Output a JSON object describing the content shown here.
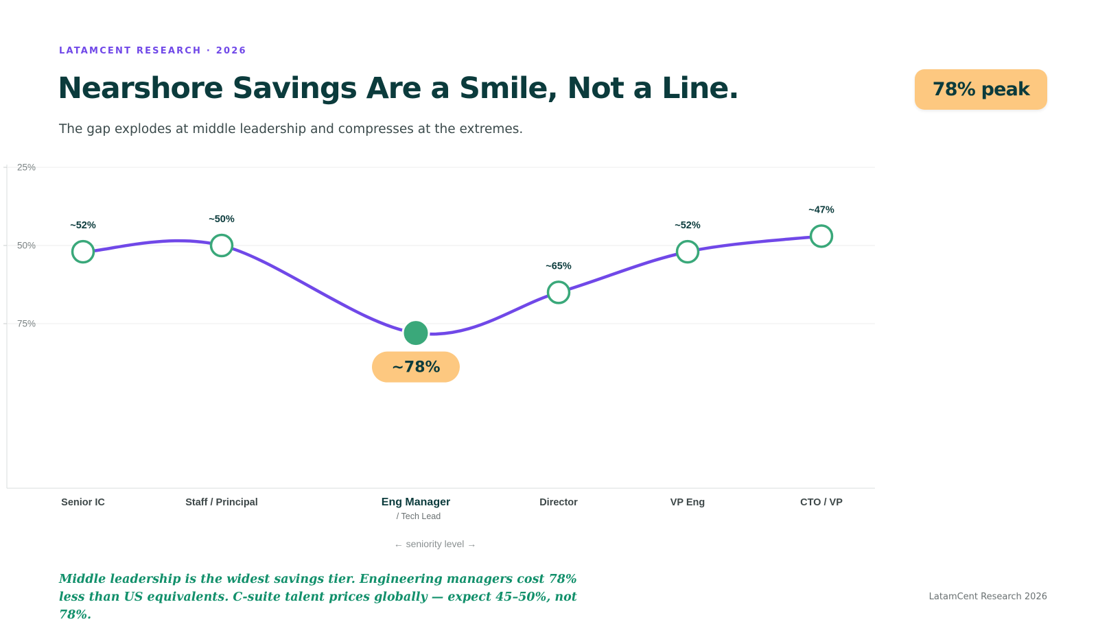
{
  "header": {
    "eyebrow": "LATAMCENT RESEARCH · 2026",
    "title": "Nearshore Savings Are a Smile, Not a Line.",
    "subtitle": "The gap explodes at middle leadership and compresses at the extremes.",
    "peak_badge": "78% peak"
  },
  "chart_data": {
    "type": "line",
    "categories": [
      "Senior IC",
      "Staff / Principal",
      "Eng Manager",
      "Director",
      "VP Eng",
      "CTO / VP"
    ],
    "category_sublabels": [
      "",
      "",
      "/ Tech Lead",
      "",
      "",
      ""
    ],
    "values": [
      52,
      50,
      78,
      65,
      52,
      47
    ],
    "data_labels": [
      "~52%",
      "~50%",
      "~78%",
      "~65%",
      "~52%",
      "~47%"
    ],
    "highlight_index": 2,
    "xlabel": "← seniority level →",
    "ylabel": "",
    "ylim": [
      0,
      100
    ],
    "y_inverted": true,
    "yticks": [
      25,
      50,
      75
    ],
    "ytick_labels": [
      "25%",
      "50%",
      "75%"
    ],
    "grid": true,
    "colors": {
      "line": "#7048e8",
      "marker_stroke": "#3aa87a",
      "marker_fill": "#ffffff",
      "highlight_fill": "#3aa87a",
      "highlight_label_bg": "#fdc880",
      "text_dark": "#0b3b3c"
    }
  },
  "footer": {
    "note": "Middle leadership is the widest savings tier. Engineering managers cost 78% less than US equivalents. C-suite talent prices globally — expect 45–50%, not 78%.",
    "source": "LatamCent Research 2026"
  }
}
